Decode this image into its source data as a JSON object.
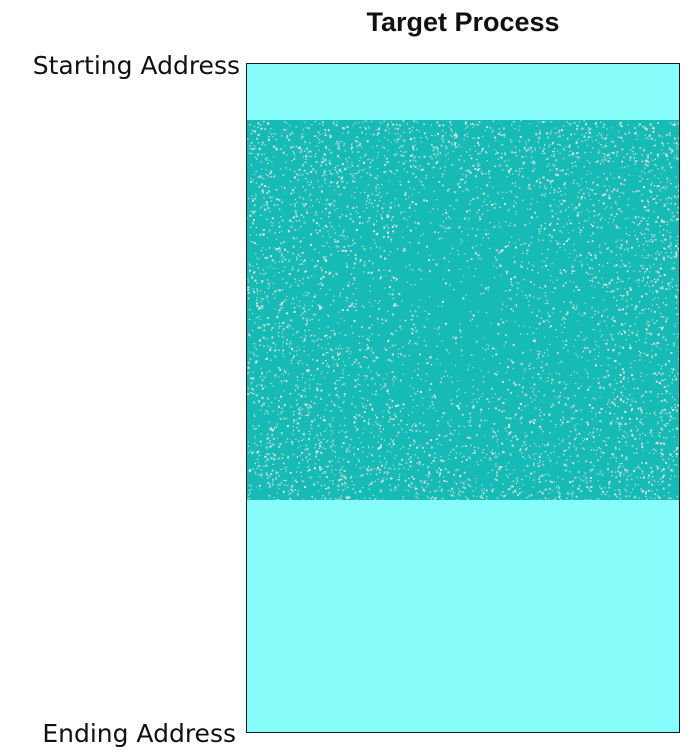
{
  "diagram": {
    "title": "Target Process",
    "start_label": "Starting Address",
    "end_label": "Ending Address"
  },
  "colors": {
    "memory_fill": "#87fdfb",
    "scrambled_fill": "#16bbb6",
    "noise_speckle": "#e9e4e1",
    "border": "#1b1b1b"
  }
}
